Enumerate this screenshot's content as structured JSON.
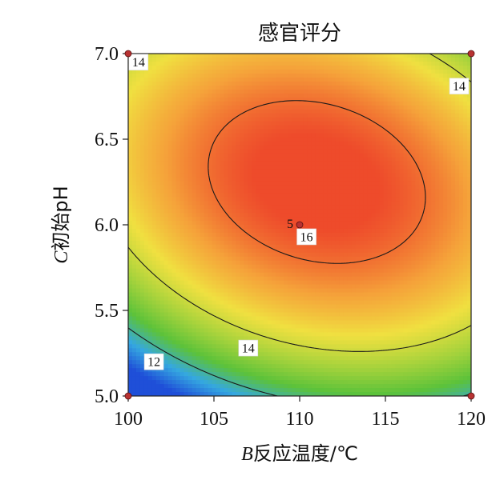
{
  "chart_data": {
    "type": "heatmap",
    "subtype": "response-surface-contour",
    "title": "感官评分",
    "xlabel_italic": "B",
    "xlabel_rest": "反应温度/℃",
    "ylabel_italic": "C",
    "ylabel_rest": "初始pH",
    "xlim": [
      100,
      120
    ],
    "ylim": [
      5.0,
      7.0
    ],
    "xticks": [
      100,
      105,
      110,
      115,
      120
    ],
    "xtick_labels": [
      "100",
      "105",
      "110",
      "115",
      "120"
    ],
    "yticks": [
      5.0,
      5.5,
      6.0,
      6.5,
      7.0
    ],
    "ytick_labels": [
      "5.0",
      "5.5",
      "6.0",
      "6.5",
      "7.0"
    ],
    "colormap": [
      "#1f4fd8",
      "#35a8e0",
      "#5cc23a",
      "#a8d33c",
      "#f0e040",
      "#f5a23a",
      "#ee4b2b"
    ],
    "contour_levels": [
      12,
      14,
      16
    ],
    "contour_labels": [
      {
        "text": "14",
        "x": 100.6,
        "y": 6.95
      },
      {
        "text": "14",
        "x": 119.3,
        "y": 6.81
      },
      {
        "text": "16",
        "x": 110.4,
        "y": 5.93
      },
      {
        "text": "14",
        "x": 107.0,
        "y": 5.28
      },
      {
        "text": "12",
        "x": 101.5,
        "y": 5.2
      }
    ],
    "design_points": [
      {
        "x": 100,
        "y": 7.0,
        "label": ""
      },
      {
        "x": 120,
        "y": 7.0,
        "label": ""
      },
      {
        "x": 100,
        "y": 5.0,
        "label": ""
      },
      {
        "x": 120,
        "y": 5.0,
        "label": ""
      },
      {
        "x": 110,
        "y": 6.0,
        "label": "5"
      }
    ],
    "surface": {
      "center": {
        "x": 111.0,
        "y": 6.25
      },
      "peak": 16.6,
      "a": 0.0155,
      "b": 2.75,
      "c": 0.0775
    },
    "grid": false
  }
}
